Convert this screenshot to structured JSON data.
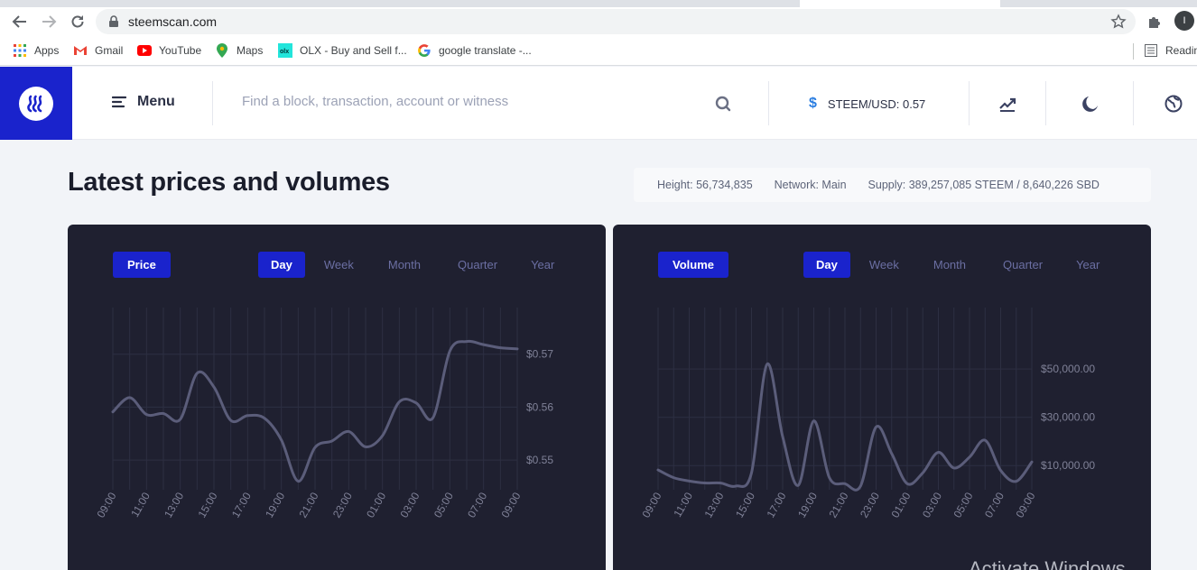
{
  "browser": {
    "url": "steemscan.com",
    "profile_initial": "I",
    "bookmarks": [
      {
        "label": "Apps",
        "icon": "apps-grid-icon"
      },
      {
        "label": "Gmail",
        "icon": "gmail-icon"
      },
      {
        "label": "YouTube",
        "icon": "youtube-icon"
      },
      {
        "label": "Maps",
        "icon": "maps-icon"
      },
      {
        "label": "OLX - Buy and Sell f...",
        "icon": "olx-icon"
      },
      {
        "label": "google translate -...",
        "icon": "google-icon"
      }
    ],
    "reading_list": "Readin"
  },
  "header": {
    "menu_label": "Menu",
    "search_placeholder": "Find a block, transaction, account or witness",
    "price_ticker": "STEEM/USD: 0.57",
    "icons": [
      "search-icon",
      "dollar-icon",
      "chart-trend-icon",
      "moon-icon",
      "globe-icon"
    ]
  },
  "page": {
    "title": "Latest prices and volumes",
    "stats": {
      "height": "Height: 56,734,835",
      "network": "Network: Main",
      "supply": "Supply: 389,257,085 STEEM / 8,640,226 SBD"
    }
  },
  "period_tabs": [
    "Day",
    "Week",
    "Month",
    "Quarter",
    "Year"
  ],
  "watermark": "Activate Windows",
  "colors": {
    "accent": "#1a23cc",
    "card_bg": "#1f2030",
    "line": "#5b5d7a",
    "grid": "#2d2f42",
    "tick": "#7f8197"
  },
  "chart_data": [
    {
      "type": "line",
      "label": "Price",
      "active_period": "Day",
      "x_ticks": [
        "09:00",
        "11:00",
        "13:00",
        "15:00",
        "17:00",
        "19:00",
        "21:00",
        "23:00",
        "01:00",
        "03:00",
        "05:00",
        "07:00",
        "09:00"
      ],
      "y_ticks": [
        {
          "value": 0.57,
          "label": "$0.57"
        },
        {
          "value": 0.56,
          "label": "$0.56"
        },
        {
          "value": 0.55,
          "label": "$0.55"
        }
      ],
      "ylim": [
        0.5444,
        0.5754
      ],
      "x": [
        0,
        0.5,
        1,
        1.5,
        2,
        2.5,
        3,
        3.5,
        4,
        4.5,
        5,
        5.5,
        6,
        6.5,
        7,
        7.5,
        8,
        8.5,
        9,
        9.5,
        10,
        10.5,
        11,
        11.5,
        12
      ],
      "values": [
        0.5591,
        0.5618,
        0.5586,
        0.5588,
        0.5577,
        0.5664,
        0.5638,
        0.5575,
        0.5584,
        0.5579,
        0.5538,
        0.546,
        0.5524,
        0.5536,
        0.5554,
        0.5525,
        0.5546,
        0.561,
        0.5608,
        0.558,
        0.5706,
        0.5724,
        0.5718,
        0.5712,
        0.571
      ]
    },
    {
      "type": "line",
      "label": "Volume",
      "active_period": "Day",
      "x_ticks": [
        "09:00",
        "11:00",
        "13:00",
        "15:00",
        "17:00",
        "19:00",
        "21:00",
        "23:00",
        "01:00",
        "03:00",
        "05:00",
        "07:00",
        "09:00"
      ],
      "y_ticks": [
        {
          "value": 50000,
          "label": "$50,000.00"
        },
        {
          "value": 30000,
          "label": "$30,000.00"
        },
        {
          "value": 10000,
          "label": "$10,000.00"
        }
      ],
      "ylim": [
        0,
        68000
      ],
      "x": [
        0,
        0.5,
        1,
        1.5,
        2,
        2.5,
        3,
        3.5,
        4,
        4.5,
        5,
        5.5,
        6,
        6.5,
        7,
        7.5,
        8,
        8.5,
        9,
        9.5,
        10,
        10.5,
        11,
        11.5,
        12
      ],
      "values": [
        8200,
        5000,
        3600,
        2800,
        2800,
        1500,
        7000,
        52000,
        22000,
        1800,
        28500,
        5000,
        2500,
        1500,
        26000,
        15000,
        2500,
        7000,
        15500,
        9000,
        13500,
        20500,
        8000,
        3500,
        11500
      ]
    }
  ]
}
